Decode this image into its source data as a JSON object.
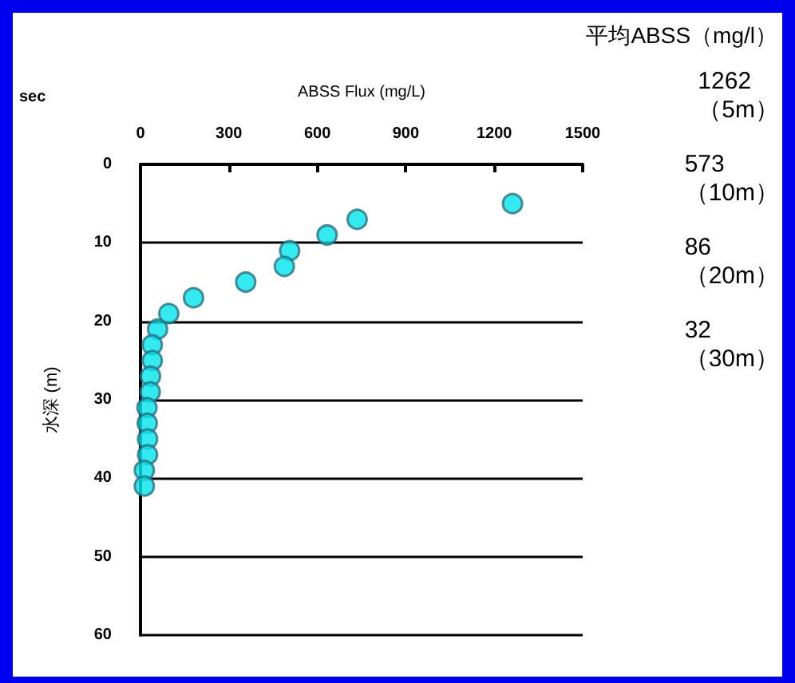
{
  "chart_data": {
    "type": "scatter",
    "title": "平均ABSS（mg/l）",
    "xlabel": "ABSS Flux (mg/L)",
    "ylabel": "水深 (m)",
    "annotations": [
      "sec",
      "1262\n（5m）",
      "573\n（10m）",
      "86\n（20m）",
      "32\n（30m）"
    ],
    "x": [
      1262,
      735,
      633,
      506,
      488,
      357,
      180,
      96,
      58,
      40,
      40,
      34,
      33,
      22,
      23,
      24,
      24,
      13,
      13
    ],
    "values": [
      5,
      7,
      9,
      11,
      13,
      15,
      17,
      19,
      21,
      23,
      25,
      27,
      29,
      31,
      33,
      35,
      37,
      39,
      41
    ],
    "color": "#00e5ee",
    "marker": "circle",
    "grid": "y",
    "xlim": [
      0,
      1500
    ],
    "xticks": [
      0,
      300,
      600,
      900,
      1200,
      1500
    ],
    "ylim": [
      60,
      0
    ],
    "yticks": [
      0,
      10,
      20,
      30,
      40,
      50,
      60
    ]
  }
}
